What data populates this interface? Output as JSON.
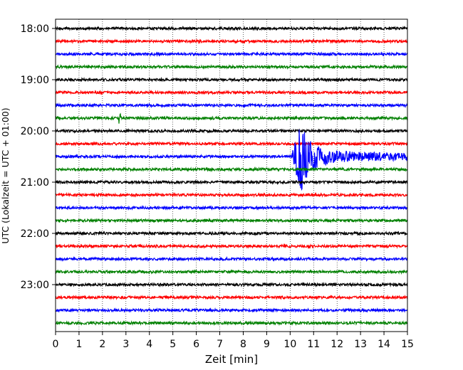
{
  "chart_data": {
    "type": "line",
    "title": "",
    "xlabel": "Zeit  [min]",
    "ylabel": "UTC (Lokalzeit = UTC + 01:00)",
    "xlim": [
      0,
      15
    ],
    "x_ticks": [
      "0",
      "1",
      "2",
      "3",
      "4",
      "5",
      "6",
      "7",
      "8",
      "9",
      "10",
      "11",
      "12",
      "13",
      "14",
      "15"
    ],
    "y_ticks": [
      {
        "label": "18:00",
        "minutes": 0
      },
      {
        "label": "19:00",
        "minutes": 60
      },
      {
        "label": "20:00",
        "minutes": 120
      },
      {
        "label": "21:00",
        "minutes": 180
      },
      {
        "label": "22:00",
        "minutes": 240
      },
      {
        "label": "23:00",
        "minutes": 300
      }
    ],
    "trace_interval_min": 15,
    "trace_start_minutes": [
      0,
      15,
      30,
      45,
      60,
      75,
      90,
      105,
      120,
      135,
      150,
      165,
      180,
      195,
      210,
      225,
      240,
      255,
      270,
      285,
      300,
      315,
      330,
      345
    ],
    "trace_color_cycle": [
      "#000000",
      "#ff0000",
      "#0000ff",
      "#008000"
    ],
    "grid": "vertical dotted at each minute",
    "legend": "none",
    "events": [
      {
        "trace_start_minutes": 150,
        "onset_min": 10.05,
        "peak_min": 10.45,
        "note": "large seismic event with long coda decaying until ~15 min"
      },
      {
        "trace_start_minutes": 105,
        "onset_min": 2.72,
        "note": "small spike"
      }
    ]
  }
}
